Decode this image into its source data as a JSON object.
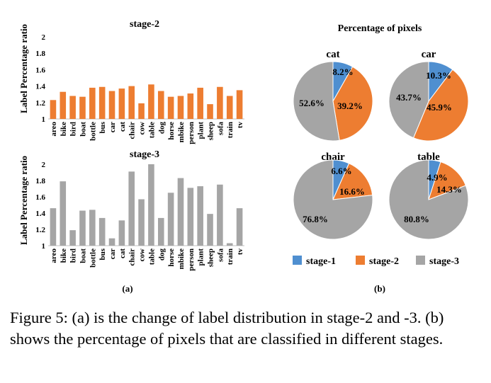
{
  "colors": {
    "stage1": "#4f8fd0",
    "stage2": "#ed7d31",
    "stage3": "#a5a5a5",
    "axis": "#bfbfbf"
  },
  "panel_a_label": "(a)",
  "panel_b_label": "(b)",
  "pie_title": "Percentage of pixels",
  "legend": [
    "stage-1",
    "stage-2",
    "stage-3"
  ],
  "caption": {
    "fig": "Figure 5:",
    "text": "(a) is the change of label distribution in stage-2 and -3. (b) shows the percentage of pixels that are classified in different stages."
  },
  "chart_data": [
    {
      "type": "bar",
      "title": "stage-2",
      "ylabel": "Label Percentage ratio",
      "xlabel": "",
      "ylim": [
        1,
        2
      ],
      "yticks": [
        "1",
        "1.2",
        "1.4",
        "1.6",
        "1.8",
        "2"
      ],
      "categories": [
        "areo",
        "bike",
        "bird",
        "boat",
        "bottle",
        "bus",
        "car",
        "cat",
        "chair",
        "cow",
        "table",
        "dog",
        "horse",
        "mbike",
        "person",
        "plant",
        "sheep",
        "sofa",
        "train",
        "tv"
      ],
      "values": [
        1.23,
        1.33,
        1.28,
        1.27,
        1.38,
        1.39,
        1.34,
        1.37,
        1.4,
        1.19,
        1.42,
        1.34,
        1.27,
        1.28,
        1.31,
        1.38,
        1.18,
        1.39,
        1.28,
        1.35
      ],
      "color": "#ed7d31"
    },
    {
      "type": "bar",
      "title": "stage-3",
      "ylabel": "Label Percentage ratio",
      "xlabel": "",
      "ylim": [
        1,
        2
      ],
      "yticks": [
        "1",
        "1.2",
        "1.4",
        "1.6",
        "1.8",
        "2"
      ],
      "categories": [
        "areo",
        "bike",
        "bird",
        "boat",
        "bottle",
        "bus",
        "car",
        "cat",
        "chair",
        "cow",
        "table",
        "dog",
        "horse",
        "mbike",
        "person",
        "plant",
        "sheep",
        "sofa",
        "train",
        "tv"
      ],
      "values": [
        1.46,
        1.79,
        1.19,
        1.43,
        1.44,
        1.34,
        1.09,
        1.31,
        1.91,
        1.57,
        2.0,
        1.34,
        1.65,
        1.83,
        1.71,
        1.73,
        1.39,
        1.75,
        1.03,
        1.46
      ],
      "color": "#a5a5a5"
    },
    {
      "type": "pie",
      "title": "cat",
      "labels": [
        "stage-1",
        "stage-2",
        "stage-3"
      ],
      "values": [
        8.2,
        39.2,
        52.6
      ],
      "value_labels": [
        "8.2%",
        "39.2%",
        "52.6%"
      ]
    },
    {
      "type": "pie",
      "title": "car",
      "labels": [
        "stage-1",
        "stage-2",
        "stage-3"
      ],
      "values": [
        10.3,
        45.9,
        43.7
      ],
      "value_labels": [
        "10.3%",
        "45.9%",
        "43.7%"
      ]
    },
    {
      "type": "pie",
      "title": "chair",
      "labels": [
        "stage-1",
        "stage-2",
        "stage-3"
      ],
      "values": [
        6.6,
        16.6,
        76.8
      ],
      "value_labels": [
        "6.6%",
        "16.6%",
        "76.8%"
      ]
    },
    {
      "type": "pie",
      "title": "table",
      "labels": [
        "stage-1",
        "stage-2",
        "stage-3"
      ],
      "values": [
        4.9,
        14.3,
        80.8
      ],
      "value_labels": [
        "4.9%",
        "14.3%",
        "80.8%"
      ]
    }
  ]
}
